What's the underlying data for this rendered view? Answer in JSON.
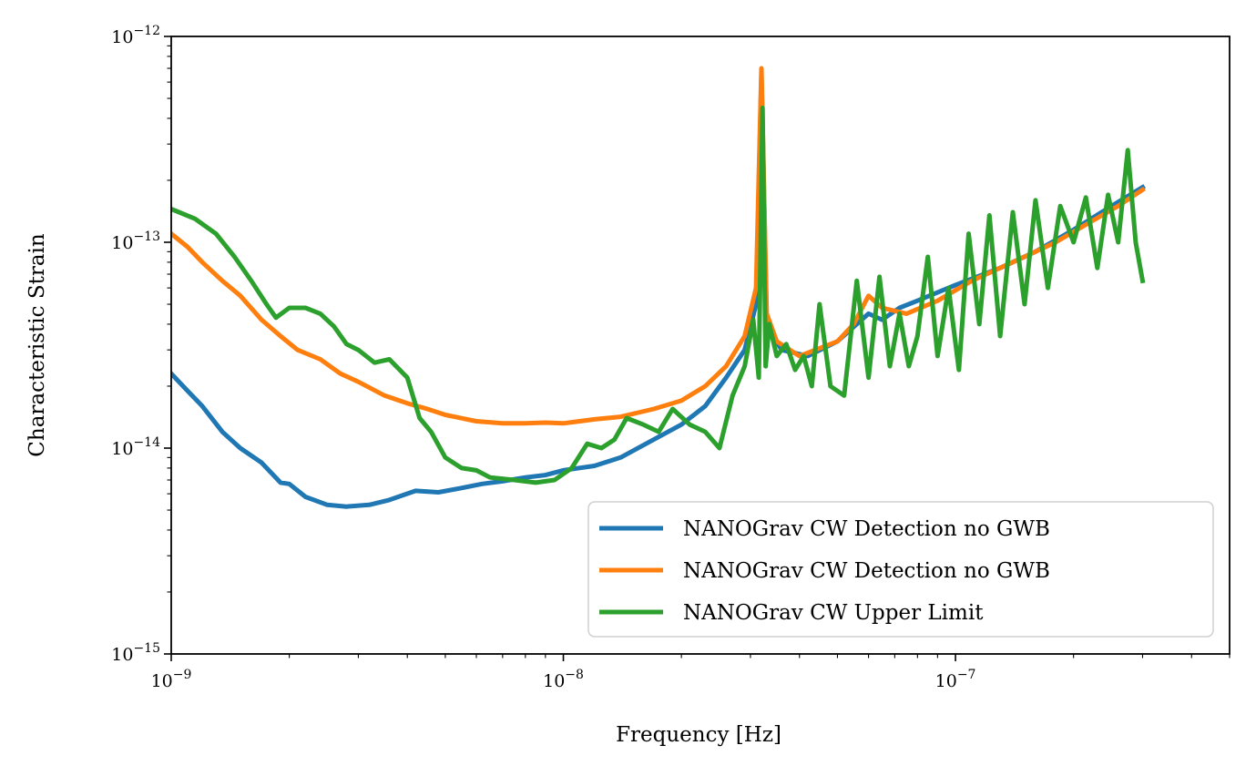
{
  "chart_data": {
    "type": "line",
    "xlabel": "Frequency [Hz]",
    "ylabel": "Characteristic Strain",
    "xscale": "log",
    "yscale": "log",
    "xlim": [
      1e-09,
      5e-07
    ],
    "ylim": [
      1e-15,
      1e-12
    ],
    "grid": false,
    "legend_position": "bottom-right",
    "x_ticks": [
      {
        "base": "10",
        "exp": "−9",
        "value": 1e-09
      },
      {
        "base": "10",
        "exp": "−8",
        "value": 1e-08
      },
      {
        "base": "10",
        "exp": "−7",
        "value": 1e-07
      }
    ],
    "y_ticks": [
      {
        "base": "10",
        "exp": "−15",
        "value": 1e-15
      },
      {
        "base": "10",
        "exp": "−14",
        "value": 1e-14
      },
      {
        "base": "10",
        "exp": "−13",
        "value": 1e-13
      },
      {
        "base": "10",
        "exp": "−12",
        "value": 1e-12
      }
    ],
    "series": [
      {
        "name": "NANOGrav CW Detection no GWB",
        "color": "#1f77b4",
        "x": [
          1e-09,
          1.1e-09,
          1.2e-09,
          1.35e-09,
          1.5e-09,
          1.7e-09,
          1.9e-09,
          2e-09,
          2.2e-09,
          2.5e-09,
          2.8e-09,
          3.2e-09,
          3.6e-09,
          4.2e-09,
          4.8e-09,
          5.5e-09,
          6.2e-09,
          7e-09,
          8e-09,
          9e-09,
          1e-08,
          1.2e-08,
          1.4e-08,
          1.7e-08,
          2e-08,
          2.3e-08,
          2.6e-08,
          2.9e-08,
          3.1e-08,
          3.2e-08,
          3.3e-08,
          3.6e-08,
          4.2e-08,
          5e-08,
          6e-08,
          6.5e-08,
          7.2e-08,
          8e-08,
          1e-07,
          1.3e-07,
          1.6e-07,
          2e-07,
          2.5e-07,
          3e-07
        ],
        "y": [
          2.3e-14,
          1.9e-14,
          1.6e-14,
          1.2e-14,
          1e-14,
          8.5e-15,
          6.8e-15,
          6.7e-15,
          5.8e-15,
          5.3e-15,
          5.2e-15,
          5.3e-15,
          5.6e-15,
          6.2e-15,
          6.1e-15,
          6.4e-15,
          6.7e-15,
          6.9e-15,
          7.2e-15,
          7.4e-15,
          7.8e-15,
          8.2e-15,
          9e-15,
          1.1e-14,
          1.3e-14,
          1.6e-14,
          2.2e-14,
          3e-14,
          5e-14,
          6.5e-13,
          4e-14,
          3e-14,
          2.8e-14,
          3.3e-14,
          4.5e-14,
          4.2e-14,
          4.8e-14,
          5.2e-14,
          6.2e-14,
          7.5e-14,
          9e-14,
          1.15e-13,
          1.5e-13,
          1.85e-13
        ]
      },
      {
        "name": "NANOGrav CW Detection no GWB",
        "color": "#ff7f0e",
        "x": [
          1e-09,
          1.1e-09,
          1.2e-09,
          1.35e-09,
          1.5e-09,
          1.7e-09,
          1.9e-09,
          2.1e-09,
          2.4e-09,
          2.7e-09,
          3e-09,
          3.5e-09,
          4e-09,
          4.5e-09,
          5e-09,
          6e-09,
          7e-09,
          8e-09,
          9e-09,
          1e-08,
          1.2e-08,
          1.4e-08,
          1.7e-08,
          2e-08,
          2.3e-08,
          2.6e-08,
          2.9e-08,
          3.1e-08,
          3.2e-08,
          3.3e-08,
          3.5e-08,
          4e-08,
          5e-08,
          5.5e-08,
          6e-08,
          6.5e-08,
          7.5e-08,
          9e-08,
          1.1e-07,
          1.4e-07,
          1.8e-07,
          2.2e-07,
          2.6e-07,
          3e-07
        ],
        "y": [
          1.1e-13,
          9.5e-14,
          8e-14,
          6.5e-14,
          5.5e-14,
          4.2e-14,
          3.5e-14,
          3e-14,
          2.7e-14,
          2.3e-14,
          2.1e-14,
          1.8e-14,
          1.65e-14,
          1.55e-14,
          1.45e-14,
          1.35e-14,
          1.32e-14,
          1.32e-14,
          1.33e-14,
          1.32e-14,
          1.38e-14,
          1.42e-14,
          1.55e-14,
          1.7e-14,
          2e-14,
          2.5e-14,
          3.5e-14,
          6e-14,
          7e-13,
          4.5e-14,
          3.3e-14,
          2.8e-14,
          3.3e-14,
          4e-14,
          5.5e-14,
          4.8e-14,
          4.5e-14,
          5.2e-14,
          6.5e-14,
          8e-14,
          1e-13,
          1.25e-13,
          1.5e-13,
          1.8e-13
        ]
      },
      {
        "name": "NANOGrav CW Upper Limit",
        "color": "#2ca02c",
        "x": [
          1e-09,
          1.15e-09,
          1.3e-09,
          1.45e-09,
          1.6e-09,
          1.75e-09,
          1.85e-09,
          2e-09,
          2.2e-09,
          2.4e-09,
          2.6e-09,
          2.8e-09,
          3e-09,
          3.3e-09,
          3.6e-09,
          4e-09,
          4.3e-09,
          4.6e-09,
          5e-09,
          5.5e-09,
          6e-09,
          6.5e-09,
          7.5e-09,
          8.5e-09,
          9.5e-09,
          1.05e-08,
          1.15e-08,
          1.25e-08,
          1.35e-08,
          1.45e-08,
          1.6e-08,
          1.75e-08,
          1.9e-08,
          2.1e-08,
          2.3e-08,
          2.5e-08,
          2.7e-08,
          2.9e-08,
          3.05e-08,
          3.15e-08,
          3.22e-08,
          3.28e-08,
          3.35e-08,
          3.5e-08,
          3.7e-08,
          3.9e-08,
          4.1e-08,
          4.3e-08,
          4.5e-08,
          4.8e-08,
          5.2e-08,
          5.6e-08,
          6e-08,
          6.4e-08,
          6.8e-08,
          7.2e-08,
          7.6e-08,
          8e-08,
          8.5e-08,
          9e-08,
          9.6e-08,
          1.02e-07,
          1.08e-07,
          1.15e-07,
          1.22e-07,
          1.3e-07,
          1.4e-07,
          1.5e-07,
          1.6e-07,
          1.72e-07,
          1.85e-07,
          2e-07,
          2.15e-07,
          2.3e-07,
          2.45e-07,
          2.6e-07,
          2.75e-07,
          2.88e-07,
          3e-07
        ],
        "y": [
          1.45e-13,
          1.3e-13,
          1.1e-13,
          8.5e-14,
          6.5e-14,
          5e-14,
          4.3e-14,
          4.8e-14,
          4.8e-14,
          4.5e-14,
          3.9e-14,
          3.2e-14,
          3e-14,
          2.6e-14,
          2.7e-14,
          2.2e-14,
          1.4e-14,
          1.2e-14,
          9e-15,
          8e-15,
          7.8e-15,
          7.2e-15,
          7e-15,
          6.8e-15,
          7e-15,
          8e-15,
          1.05e-14,
          1e-14,
          1.1e-14,
          1.4e-14,
          1.3e-14,
          1.2e-14,
          1.55e-14,
          1.3e-14,
          1.2e-14,
          1e-14,
          1.8e-14,
          2.5e-14,
          4.2e-14,
          2.2e-14,
          4.5e-13,
          2.5e-14,
          4e-14,
          2.8e-14,
          3.2e-14,
          2.4e-14,
          2.8e-14,
          2e-14,
          5e-14,
          2e-14,
          1.8e-14,
          6.5e-14,
          2.2e-14,
          6.8e-14,
          2.5e-14,
          4.5e-14,
          2.5e-14,
          3.5e-14,
          8.5e-14,
          2.8e-14,
          6e-14,
          2.4e-14,
          1.1e-13,
          4e-14,
          1.35e-13,
          3.5e-14,
          1.4e-13,
          5e-14,
          1.6e-13,
          6e-14,
          1.5e-13,
          1e-13,
          1.65e-13,
          7.5e-14,
          1.7e-13,
          1e-13,
          2.8e-13,
          1e-13,
          6.5e-14
        ]
      }
    ]
  }
}
